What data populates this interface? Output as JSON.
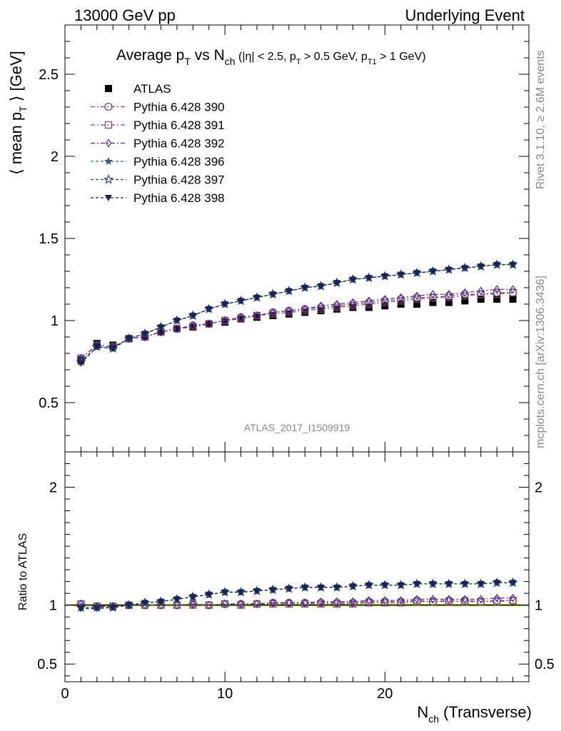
{
  "header": {
    "left": "13000 GeV pp",
    "right": "Underlying Event"
  },
  "side_labels": {
    "rivet": "Rivet 3.1.10, ≥ 2.6M events",
    "mcplots": "mcplots.cern.ch [arXiv:1306.3436]"
  },
  "watermark": "ATLAS_2017_I1509919",
  "chart_data": [
    {
      "type": "scatter",
      "panel": "main",
      "title": {
        "main": "Average p",
        "main_sub": "T",
        "vs": " vs N",
        "vs_sub": "ch",
        "cuts_1": " (|η| < 2.5, p",
        "cuts_1_sub": "T",
        "cuts_2": " > 0.5 GeV, p",
        "cuts_2_sub": "T1",
        "cuts_3": " > 1 GeV)"
      },
      "ylabel": {
        "pre": "⟨ mean p",
        "sub": "T",
        "post": " ⟩ [GeV]"
      },
      "xlim": [
        0,
        29
      ],
      "ylim": [
        0.2,
        2.8
      ],
      "yticks": [
        0.5,
        1,
        1.5,
        2,
        2.5
      ],
      "ytick_labels": [
        "0.5",
        "1",
        "1.5",
        "2",
        "2.5"
      ],
      "x": [
        1,
        2,
        3,
        4,
        5,
        6,
        7,
        8,
        9,
        10,
        11,
        12,
        13,
        14,
        15,
        16,
        17,
        18,
        19,
        20,
        21,
        22,
        23,
        24,
        25,
        26,
        27,
        28
      ],
      "legend_position": "top-left",
      "series": [
        {
          "name": "ATLAS",
          "marker": "filled-square",
          "color": "#000000",
          "dash": "none",
          "values": [
            0.76,
            0.86,
            0.85,
            0.89,
            0.9,
            0.93,
            0.95,
            0.96,
            0.98,
            0.99,
            1.01,
            1.02,
            1.03,
            1.04,
            1.05,
            1.06,
            1.07,
            1.08,
            1.08,
            1.09,
            1.1,
            1.1,
            1.11,
            1.11,
            1.12,
            1.13,
            1.13,
            1.13
          ]
        },
        {
          "name": "Pythia 6.428 390",
          "marker": "open-circle",
          "color": "#7a3f86",
          "dash": "6,3,2,3",
          "values": [
            0.77,
            0.85,
            0.84,
            0.89,
            0.9,
            0.93,
            0.95,
            0.97,
            0.98,
            1.0,
            1.02,
            1.03,
            1.05,
            1.06,
            1.07,
            1.08,
            1.09,
            1.1,
            1.11,
            1.12,
            1.13,
            1.14,
            1.14,
            1.15,
            1.16,
            1.16,
            1.17,
            1.17
          ]
        },
        {
          "name": "Pythia 6.428 391",
          "marker": "open-square",
          "color": "#7a4860",
          "dash": "6,3,2,3",
          "values": [
            0.77,
            0.85,
            0.84,
            0.89,
            0.9,
            0.93,
            0.95,
            0.96,
            0.98,
            1.0,
            1.01,
            1.03,
            1.04,
            1.05,
            1.06,
            1.07,
            1.08,
            1.09,
            1.1,
            1.11,
            1.12,
            1.13,
            1.14,
            1.14,
            1.15,
            1.16,
            1.16,
            1.17
          ]
        },
        {
          "name": "Pythia 6.428 392",
          "marker": "open-diamond",
          "color": "#4a2f8a",
          "dash": "6,3,2,3",
          "values": [
            0.77,
            0.85,
            0.84,
            0.89,
            0.9,
            0.93,
            0.95,
            0.97,
            0.98,
            1.0,
            1.02,
            1.03,
            1.05,
            1.06,
            1.07,
            1.09,
            1.1,
            1.11,
            1.12,
            1.13,
            1.14,
            1.15,
            1.16,
            1.16,
            1.17,
            1.18,
            1.19,
            1.19
          ]
        },
        {
          "name": "Pythia 6.428 396",
          "marker": "filled-star",
          "color": "#3a5a7a",
          "dash": "4,3",
          "values": [
            0.75,
            0.84,
            0.83,
            0.89,
            0.92,
            0.96,
            1.0,
            1.03,
            1.07,
            1.1,
            1.12,
            1.14,
            1.16,
            1.18,
            1.2,
            1.21,
            1.23,
            1.25,
            1.26,
            1.27,
            1.28,
            1.29,
            1.3,
            1.31,
            1.32,
            1.33,
            1.34,
            1.34
          ]
        },
        {
          "name": "Pythia 6.428 397",
          "marker": "open-star",
          "color": "#2a3f6a",
          "dash": "4,3",
          "values": [
            0.75,
            0.84,
            0.83,
            0.89,
            0.92,
            0.96,
            1.0,
            1.03,
            1.07,
            1.1,
            1.12,
            1.14,
            1.16,
            1.18,
            1.2,
            1.21,
            1.23,
            1.25,
            1.26,
            1.27,
            1.28,
            1.29,
            1.3,
            1.31,
            1.32,
            1.33,
            1.34,
            1.34
          ]
        },
        {
          "name": "Pythia 6.428 398",
          "marker": "filled-triangle-down",
          "color": "#1a2450",
          "dash": "4,3",
          "values": [
            0.74,
            0.84,
            0.83,
            0.89,
            0.92,
            0.96,
            1.0,
            1.03,
            1.07,
            1.1,
            1.12,
            1.14,
            1.16,
            1.18,
            1.2,
            1.21,
            1.23,
            1.25,
            1.26,
            1.27,
            1.28,
            1.29,
            1.3,
            1.31,
            1.32,
            1.33,
            1.34,
            1.34
          ]
        }
      ]
    },
    {
      "type": "scatter",
      "panel": "ratio",
      "ylabel": "Ratio to ATLAS",
      "xlabel": {
        "pre": "N",
        "sub": "ch",
        "post": " (Transverse)"
      },
      "xlim": [
        0,
        29
      ],
      "xticks": [
        0,
        10,
        20
      ],
      "xtick_labels": [
        "0",
        "10",
        "20"
      ],
      "ylim": [
        0.35,
        2.3
      ],
      "yticks": [
        0.5,
        1,
        2
      ],
      "ytick_labels": [
        "0.5",
        "1",
        "2"
      ],
      "band_color": "#ccee55",
      "x": [
        1,
        2,
        3,
        4,
        5,
        6,
        7,
        8,
        9,
        10,
        11,
        12,
        13,
        14,
        15,
        16,
        17,
        18,
        19,
        20,
        21,
        22,
        23,
        24,
        25,
        26,
        27,
        28
      ],
      "series": [
        {
          "name": "Pythia 6.428 390",
          "values": [
            1.01,
            0.99,
            0.99,
            1.0,
            1.0,
            1.0,
            1.0,
            1.01,
            1.0,
            1.01,
            1.01,
            1.01,
            1.02,
            1.02,
            1.02,
            1.02,
            1.02,
            1.02,
            1.03,
            1.03,
            1.03,
            1.04,
            1.03,
            1.04,
            1.04,
            1.03,
            1.04,
            1.04
          ]
        },
        {
          "name": "Pythia 6.428 391",
          "values": [
            1.01,
            0.99,
            0.99,
            1.0,
            1.0,
            1.0,
            1.0,
            1.0,
            1.0,
            1.01,
            1.0,
            1.01,
            1.01,
            1.01,
            1.01,
            1.01,
            1.01,
            1.01,
            1.02,
            1.02,
            1.02,
            1.03,
            1.03,
            1.03,
            1.03,
            1.03,
            1.03,
            1.04
          ]
        },
        {
          "name": "Pythia 6.428 392",
          "values": [
            1.01,
            0.99,
            0.99,
            1.0,
            1.0,
            1.0,
            1.0,
            1.01,
            1.0,
            1.01,
            1.01,
            1.01,
            1.02,
            1.02,
            1.02,
            1.03,
            1.03,
            1.03,
            1.04,
            1.04,
            1.04,
            1.05,
            1.05,
            1.05,
            1.05,
            1.05,
            1.06,
            1.06
          ]
        },
        {
          "name": "Pythia 6.428 396",
          "values": [
            0.98,
            0.98,
            0.98,
            1.0,
            1.02,
            1.03,
            1.05,
            1.07,
            1.09,
            1.11,
            1.11,
            1.12,
            1.13,
            1.14,
            1.15,
            1.15,
            1.15,
            1.16,
            1.17,
            1.17,
            1.17,
            1.18,
            1.18,
            1.18,
            1.18,
            1.18,
            1.19,
            1.19
          ]
        },
        {
          "name": "Pythia 6.428 397",
          "values": [
            0.98,
            0.98,
            0.98,
            1.0,
            1.02,
            1.03,
            1.05,
            1.07,
            1.09,
            1.11,
            1.11,
            1.12,
            1.13,
            1.14,
            1.15,
            1.15,
            1.15,
            1.16,
            1.17,
            1.17,
            1.17,
            1.18,
            1.18,
            1.18,
            1.18,
            1.18,
            1.19,
            1.19
          ]
        },
        {
          "name": "Pythia 6.428 398",
          "values": [
            0.97,
            0.97,
            0.98,
            1.0,
            1.02,
            1.03,
            1.05,
            1.07,
            1.09,
            1.11,
            1.11,
            1.12,
            1.13,
            1.14,
            1.15,
            1.15,
            1.15,
            1.16,
            1.17,
            1.17,
            1.17,
            1.18,
            1.18,
            1.18,
            1.18,
            1.18,
            1.19,
            1.19
          ]
        }
      ]
    }
  ]
}
